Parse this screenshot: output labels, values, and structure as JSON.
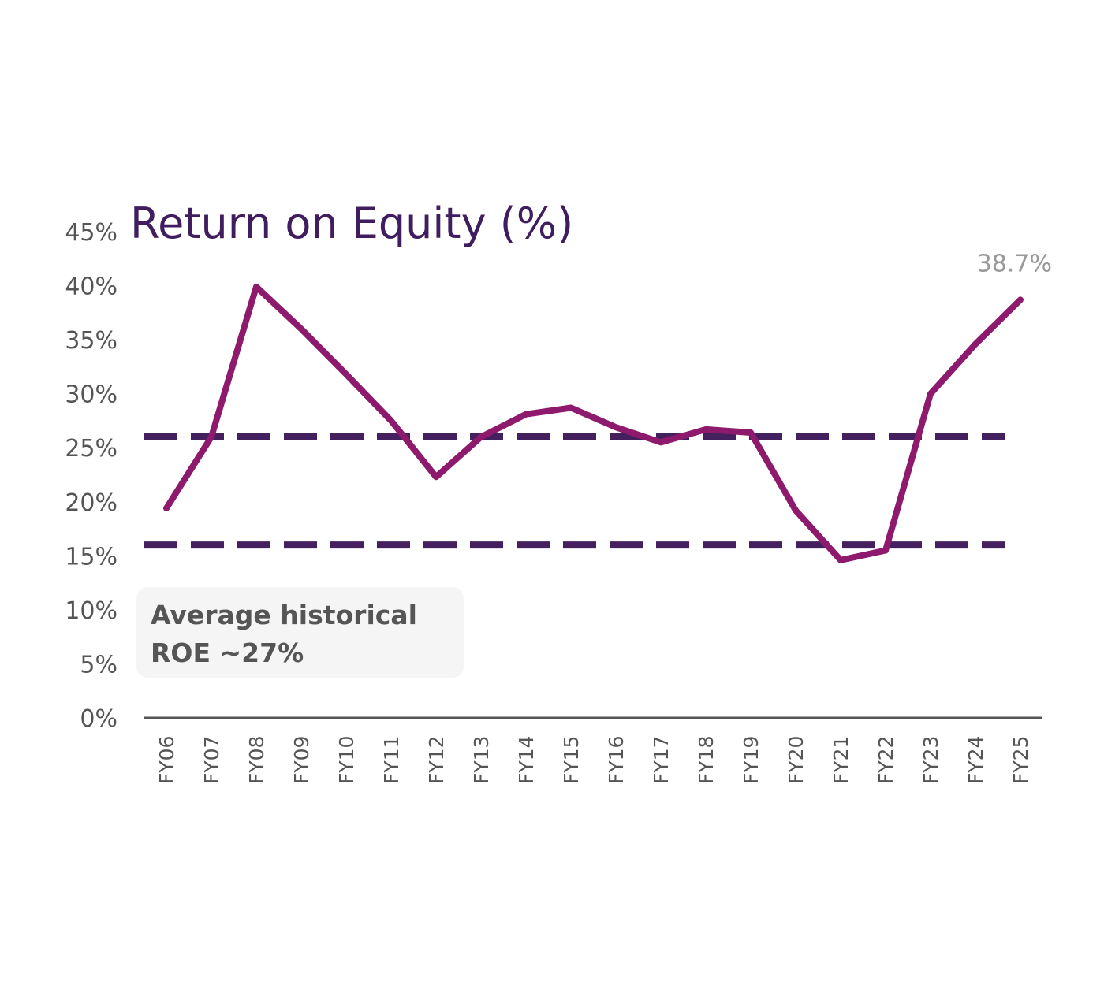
{
  "chart_data": {
    "type": "line",
    "title": "Return on Equity (%)",
    "xlabel": "",
    "ylabel": "",
    "categories": [
      "FY06",
      "FY07",
      "FY08",
      "FY09",
      "FY10",
      "FY11",
      "FY12",
      "FY13",
      "FY14",
      "FY15",
      "FY16",
      "FY17",
      "FY18",
      "FY19",
      "FY20",
      "FY21",
      "FY22",
      "FY23",
      "FY24",
      "FY25"
    ],
    "series": [
      {
        "values": [
          19.4,
          26.0,
          39.9,
          36.0,
          31.8,
          27.5,
          22.3,
          26.0,
          28.1,
          28.7,
          26.9,
          25.5,
          26.7,
          26.4,
          19.2,
          14.6,
          15.5,
          30.0,
          34.6,
          38.7
        ],
        "color": "#8e1a6e"
      }
    ],
    "reference_lines": [
      {
        "value": 26,
        "style": "dashed",
        "color": "#45205e"
      },
      {
        "value": 16,
        "style": "dashed",
        "color": "#45205e"
      }
    ],
    "ylim": [
      0,
      45
    ],
    "yticks": [
      "0%",
      "5%",
      "10%",
      "15%",
      "20%",
      "25%",
      "30%",
      "35%",
      "40%",
      "45%"
    ],
    "ytick_values": [
      0,
      5,
      10,
      15,
      20,
      25,
      30,
      35,
      40,
      45
    ],
    "end_label": "38.7%",
    "annotation": {
      "line1": "Average historical",
      "line2": "ROE ~27%"
    },
    "grid": false,
    "legend": "none"
  }
}
